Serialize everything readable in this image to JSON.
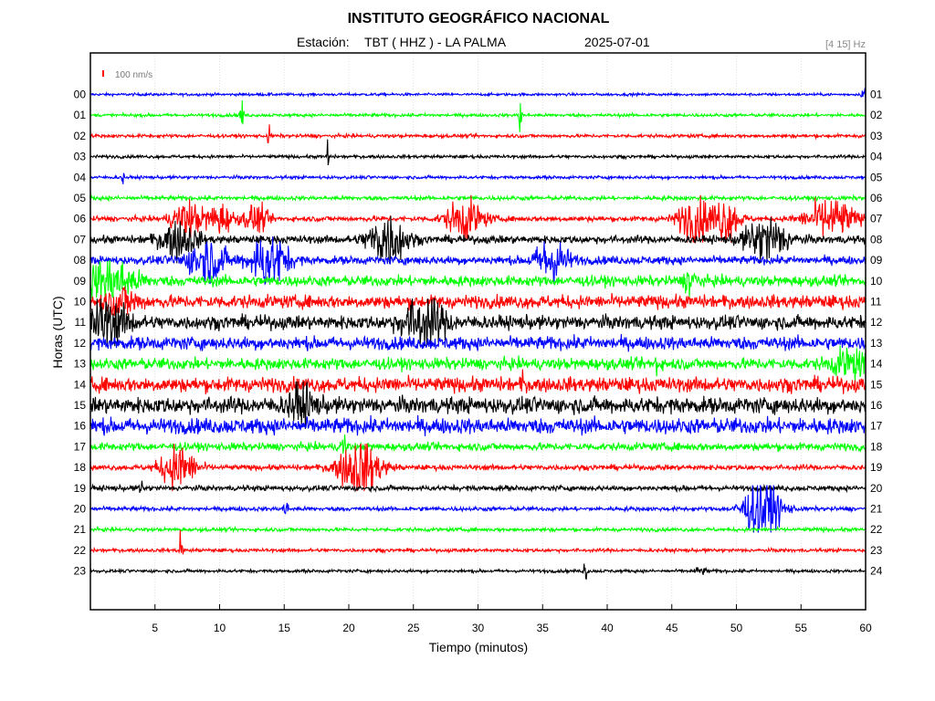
{
  "chart_data": {
    "type": "line",
    "title": "INSTITUTO GEOGRÁFICO NACIONAL",
    "station_prefix": "Estación:",
    "station": "TBT ( HHZ ) - LA PALMA",
    "date": "2025-07-01",
    "filter": "[4 15] Hz",
    "scale_label": "100 nm/s",
    "scale_color": "#ff0000",
    "xlabel": "Tiempo (minutos)",
    "ylabel": "Horas (UTC)",
    "xlim": [
      0,
      60
    ],
    "x_ticks": [
      "5",
      "10",
      "15",
      "20",
      "25",
      "30",
      "35",
      "40",
      "45",
      "50",
      "55",
      "60"
    ],
    "grid": true,
    "color_cycle": [
      "#0000ff",
      "#00ff00",
      "#ff0000",
      "#000000"
    ],
    "series": [
      {
        "left": "00",
        "right": "01",
        "color": "#0000ff",
        "noise": 1.0,
        "events": [
          {
            "t": 59.9,
            "amp": 12,
            "dur": 0.15
          }
        ]
      },
      {
        "left": "01",
        "right": "02",
        "color": "#00ff00",
        "noise": 1.2,
        "events": [
          {
            "t": 11.7,
            "amp": 18,
            "dur": 0.12
          },
          {
            "t": 33.3,
            "amp": 28,
            "dur": 0.1
          }
        ]
      },
      {
        "left": "02",
        "right": "03",
        "color": "#ff0000",
        "noise": 1.3,
        "events": [
          {
            "t": 13.8,
            "amp": 9,
            "dur": 0.1
          }
        ]
      },
      {
        "left": "03",
        "right": "04",
        "color": "#000000",
        "noise": 1.2,
        "events": [
          {
            "t": 18.4,
            "amp": 26,
            "dur": 0.08
          }
        ]
      },
      {
        "left": "04",
        "right": "05",
        "color": "#0000ff",
        "noise": 1.2,
        "events": [
          {
            "t": 2.5,
            "amp": 6,
            "dur": 0.1
          }
        ]
      },
      {
        "left": "05",
        "right": "06",
        "color": "#00ff00",
        "noise": 1.6,
        "events": []
      },
      {
        "left": "06",
        "right": "07",
        "color": "#ff0000",
        "noise": 2.0,
        "events": [
          {
            "t": 7.5,
            "amp": 14,
            "dur": 1.2
          },
          {
            "t": 10.0,
            "amp": 12,
            "dur": 1.0
          },
          {
            "t": 12.8,
            "amp": 11,
            "dur": 0.9
          },
          {
            "t": 29.0,
            "amp": 16,
            "dur": 1.4
          },
          {
            "t": 46.8,
            "amp": 20,
            "dur": 1.2
          },
          {
            "t": 49.2,
            "amp": 18,
            "dur": 1.0
          },
          {
            "t": 57.3,
            "amp": 16,
            "dur": 1.8
          }
        ]
      },
      {
        "left": "07",
        "right": "08",
        "color": "#000000",
        "noise": 3.0,
        "events": [
          {
            "t": 6.8,
            "amp": 14,
            "dur": 1.4
          },
          {
            "t": 23.0,
            "amp": 22,
            "dur": 1.4
          },
          {
            "t": 52.3,
            "amp": 18,
            "dur": 1.6
          }
        ]
      },
      {
        "left": "08",
        "right": "09",
        "color": "#0000ff",
        "noise": 3.2,
        "events": [
          {
            "t": 9.0,
            "amp": 18,
            "dur": 1.4
          },
          {
            "t": 13.8,
            "amp": 22,
            "dur": 1.4
          },
          {
            "t": 35.7,
            "amp": 18,
            "dur": 1.2
          }
        ]
      },
      {
        "left": "09",
        "right": "10",
        "color": "#00ff00",
        "noise": 4.0,
        "events": [
          {
            "t": 1.5,
            "amp": 16,
            "dur": 2.0
          },
          {
            "t": 46.5,
            "amp": 10,
            "dur": 0.5
          }
        ]
      },
      {
        "left": "10",
        "right": "11",
        "color": "#ff0000",
        "noise": 5.0,
        "events": [
          {
            "t": 2.5,
            "amp": 10,
            "dur": 1.2
          }
        ]
      },
      {
        "left": "11",
        "right": "12",
        "color": "#000000",
        "noise": 5.2,
        "events": [
          {
            "t": 1.2,
            "amp": 18,
            "dur": 1.6
          },
          {
            "t": 25.8,
            "amp": 20,
            "dur": 1.6
          }
        ]
      },
      {
        "left": "12",
        "right": "13",
        "color": "#0000ff",
        "noise": 5.0,
        "events": []
      },
      {
        "left": "13",
        "right": "14",
        "color": "#00ff00",
        "noise": 4.4,
        "events": [
          {
            "t": 58.8,
            "amp": 10,
            "dur": 1.4
          },
          {
            "t": 43.8,
            "amp": 12,
            "dur": 0.1
          }
        ]
      },
      {
        "left": "14",
        "right": "15",
        "color": "#ff0000",
        "noise": 5.6,
        "events": [
          {
            "t": 33.5,
            "amp": 10,
            "dur": 0.1
          },
          {
            "t": 23.2,
            "amp": 10,
            "dur": 0.1
          }
        ]
      },
      {
        "left": "15",
        "right": "16",
        "color": "#000000",
        "noise": 6.2,
        "events": [
          {
            "t": 16.3,
            "amp": 14,
            "dur": 1.0
          }
        ]
      },
      {
        "left": "16",
        "right": "17",
        "color": "#0000ff",
        "noise": 6.0,
        "events": []
      },
      {
        "left": "17",
        "right": "18",
        "color": "#00ff00",
        "noise": 3.0,
        "events": [
          {
            "t": 19.6,
            "amp": 12,
            "dur": 0.2
          }
        ]
      },
      {
        "left": "18",
        "right": "19",
        "color": "#ff0000",
        "noise": 2.0,
        "events": [
          {
            "t": 6.8,
            "amp": 18,
            "dur": 1.3
          },
          {
            "t": 20.8,
            "amp": 22,
            "dur": 1.6
          }
        ]
      },
      {
        "left": "19",
        "right": "20",
        "color": "#000000",
        "noise": 2.0,
        "events": [
          {
            "t": 3.9,
            "amp": 10,
            "dur": 0.1
          }
        ]
      },
      {
        "left": "20",
        "right": "21",
        "color": "#0000ff",
        "noise": 1.6,
        "events": [
          {
            "t": 15.1,
            "amp": 7,
            "dur": 0.2
          },
          {
            "t": 52.0,
            "amp": 26,
            "dur": 1.4
          }
        ]
      },
      {
        "left": "21",
        "right": "22",
        "color": "#00ff00",
        "noise": 1.4,
        "events": []
      },
      {
        "left": "22",
        "right": "23",
        "color": "#ff0000",
        "noise": 1.3,
        "events": [
          {
            "t": 7.0,
            "amp": 26,
            "dur": 0.1
          }
        ]
      },
      {
        "left": "23",
        "right": "24",
        "color": "#000000",
        "noise": 1.2,
        "events": [
          {
            "t": 38.3,
            "amp": 20,
            "dur": 0.1
          },
          {
            "t": 47.2,
            "amp": 3,
            "dur": 0.4
          }
        ]
      }
    ]
  }
}
